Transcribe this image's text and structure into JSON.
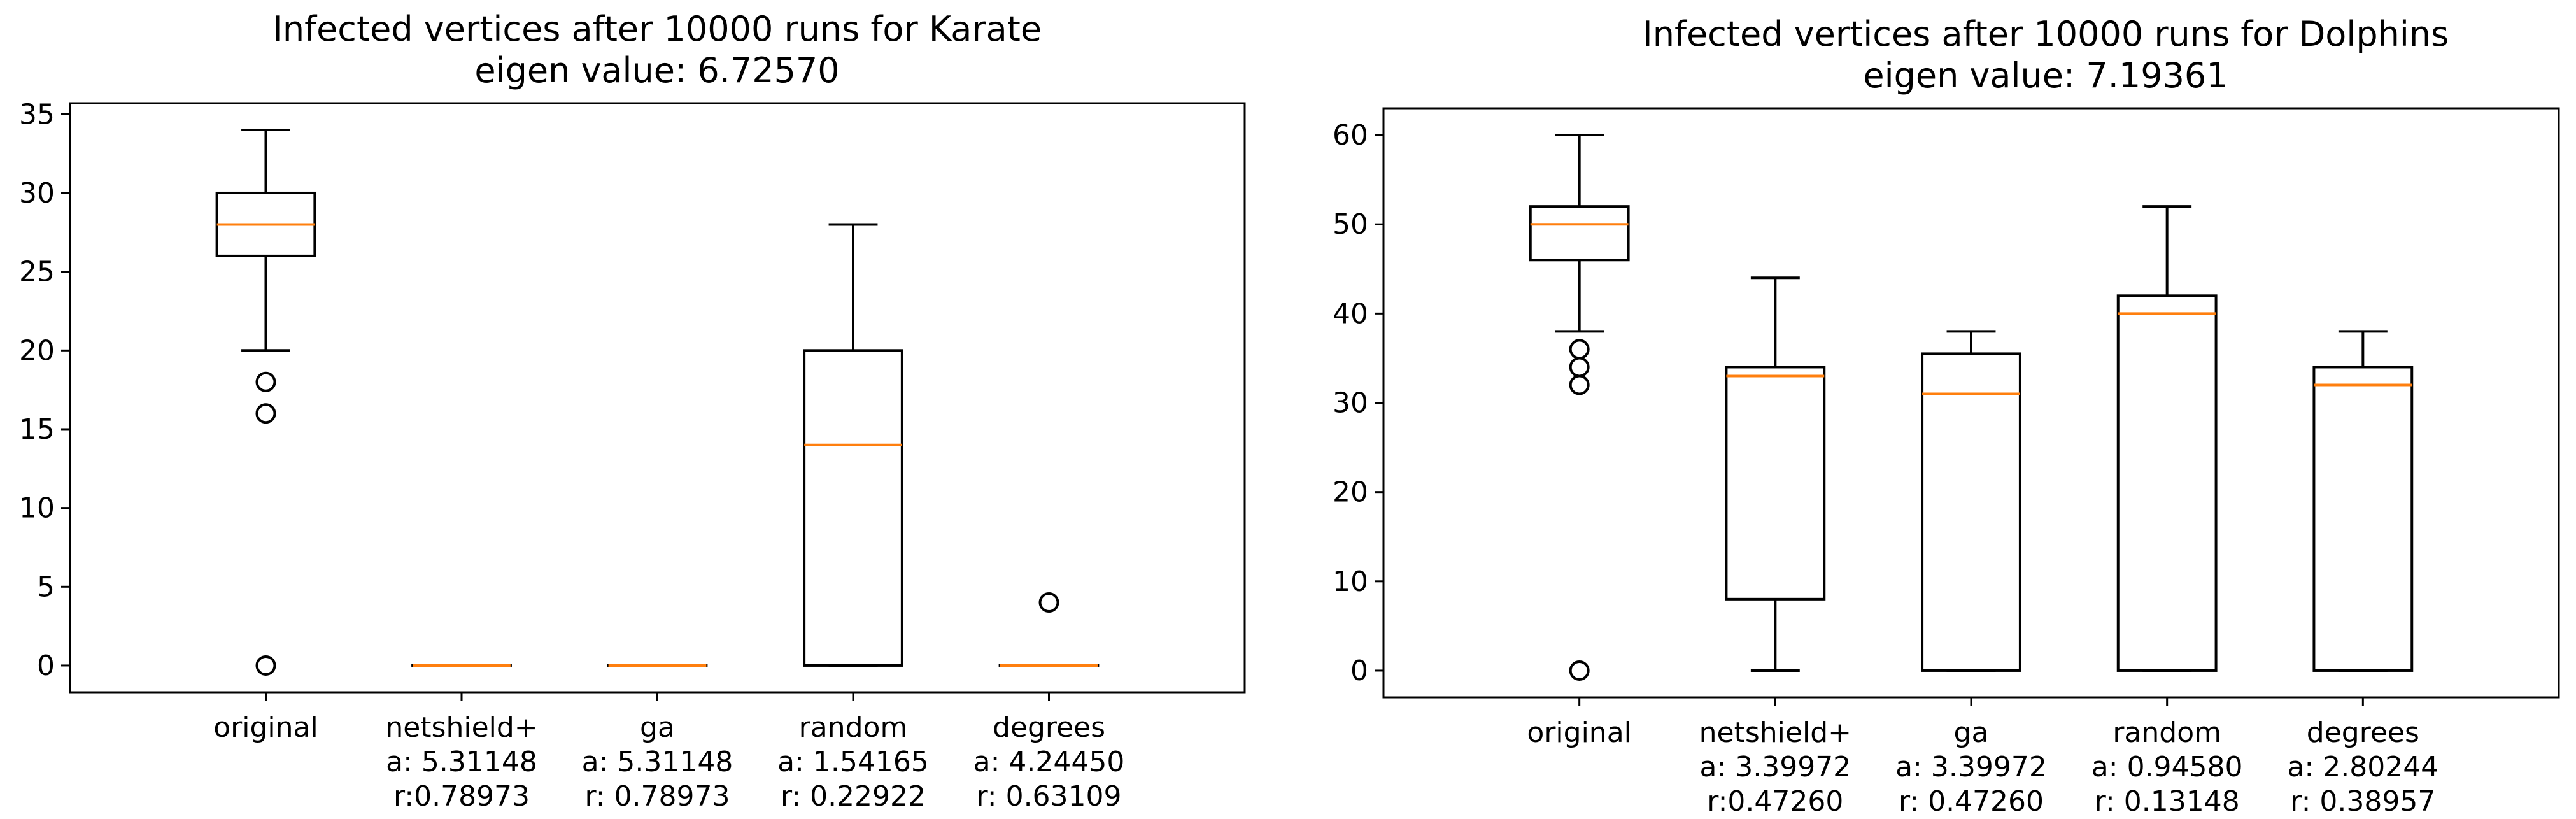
{
  "chart_data": [
    {
      "type": "box",
      "title": "Infected vertices after 10000 runs for Karate",
      "subtitle": "eigen value: 6.72570",
      "xlabel": "",
      "ylabel": "",
      "ylim": [
        -1.7,
        35.7
      ],
      "yticks": [
        0,
        5,
        10,
        15,
        20,
        25,
        30,
        35
      ],
      "grid": false,
      "median_color": "#ff7f0e",
      "categories": [
        [
          "original"
        ],
        [
          "netshield+",
          "a: 5.31148",
          "r:0.78973"
        ],
        [
          "ga",
          "a: 5.31148",
          "r: 0.78973"
        ],
        [
          "random",
          "a: 1.54165",
          "r: 0.22922"
        ],
        [
          "degrees",
          "a: 4.24450",
          "r: 0.63109"
        ]
      ],
      "boxes": [
        {
          "whislo": 20,
          "q1": 26,
          "med": 28,
          "q3": 30,
          "whishi": 34,
          "fliers": [
            18,
            16,
            0
          ]
        },
        {
          "whislo": 0,
          "q1": 0,
          "med": 0,
          "q3": 0,
          "whishi": 0,
          "fliers": []
        },
        {
          "whislo": 0,
          "q1": 0,
          "med": 0,
          "q3": 0,
          "whishi": 0,
          "fliers": []
        },
        {
          "whislo": 0,
          "q1": 0,
          "med": 14,
          "q3": 20,
          "whishi": 28,
          "fliers": []
        },
        {
          "whislo": 0,
          "q1": 0,
          "med": 0,
          "q3": 0,
          "whishi": 0,
          "fliers": [
            4
          ]
        }
      ]
    },
    {
      "type": "box",
      "title": "Infected vertices after 10000 runs for Dolphins",
      "subtitle": "eigen value: 7.19361",
      "xlabel": "",
      "ylabel": "",
      "ylim": [
        -3,
        63
      ],
      "yticks": [
        0,
        10,
        20,
        30,
        40,
        50,
        60
      ],
      "grid": false,
      "median_color": "#ff7f0e",
      "categories": [
        [
          "original"
        ],
        [
          "netshield+",
          "a: 3.39972",
          "r:0.47260"
        ],
        [
          "ga",
          "a: 3.39972",
          "r: 0.47260"
        ],
        [
          "random",
          "a: 0.94580",
          "r: 0.13148"
        ],
        [
          "degrees",
          "a: 2.80244",
          "r: 0.38957"
        ]
      ],
      "boxes": [
        {
          "whislo": 38,
          "q1": 46,
          "med": 50,
          "q3": 52,
          "whishi": 60,
          "fliers": [
            36,
            34,
            32,
            0
          ]
        },
        {
          "whislo": 0,
          "q1": 8,
          "med": 33,
          "q3": 34,
          "whishi": 44,
          "fliers": []
        },
        {
          "whislo": 0,
          "q1": 0,
          "med": 31,
          "q3": 35.5,
          "whishi": 38,
          "fliers": []
        },
        {
          "whislo": 0,
          "q1": 0,
          "med": 40,
          "q3": 42,
          "whishi": 52,
          "fliers": []
        },
        {
          "whislo": 0,
          "q1": 0,
          "med": 32,
          "q3": 34,
          "whishi": 38,
          "fliers": []
        }
      ]
    }
  ]
}
